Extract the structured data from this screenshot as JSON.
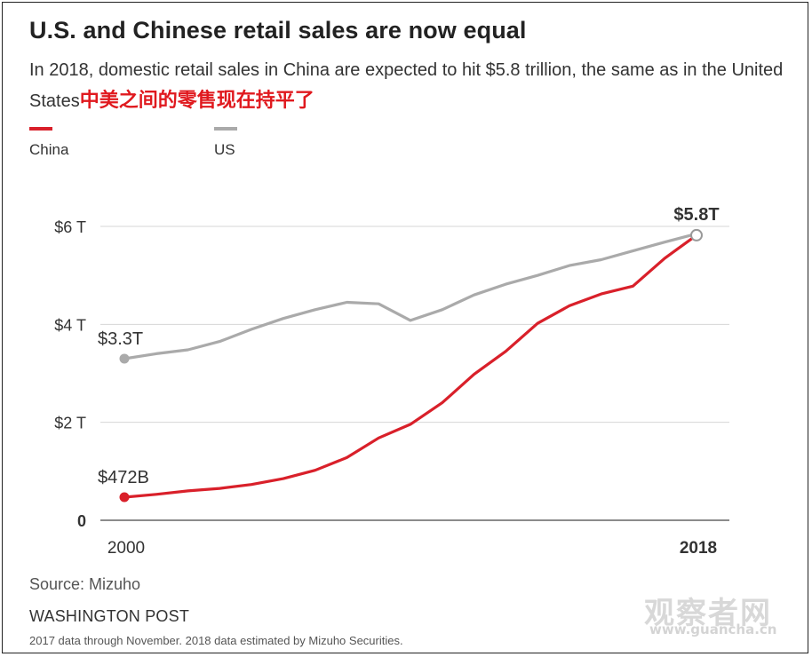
{
  "title": "U.S. and Chinese retail sales are now equal",
  "subtitle": "In 2018, domestic retail sales in China are expected to hit $5.8 trillion, the same as in the United States",
  "subtitle_cn": "中美之间的零售现在持平了",
  "legend": [
    {
      "name": "China",
      "color": "#d9202a"
    },
    {
      "name": "US",
      "color": "#aaaaaa"
    }
  ],
  "source": "Source: Mizuho",
  "brand": "WASHINGTON POST",
  "note": "2017 data through November. 2018 data estimated by Mizuho Securities.",
  "watermark": "观察者网",
  "watermark_url": "www.guancha.cn",
  "chart_data": {
    "type": "line",
    "x": [
      2000,
      2001,
      2002,
      2003,
      2004,
      2005,
      2006,
      2007,
      2008,
      2009,
      2010,
      2011,
      2012,
      2013,
      2014,
      2015,
      2016,
      2017,
      2018
    ],
    "x_tick_labels": [
      {
        "value": 2000,
        "label": "2000",
        "bold": false
      },
      {
        "value": 2018,
        "label": "2018",
        "bold": true
      }
    ],
    "y_ticks": [
      {
        "value": 0,
        "label": "0"
      },
      {
        "value": 2,
        "label": "$2 T"
      },
      {
        "value": 4,
        "label": "$4 T"
      },
      {
        "value": 6,
        "label": "$6 T"
      }
    ],
    "xlim": [
      2000,
      2018
    ],
    "ylim": [
      0,
      6
    ],
    "grid": true,
    "series": [
      {
        "name": "US",
        "color": "#aaaaaa",
        "values": [
          3.3,
          3.4,
          3.48,
          3.65,
          3.9,
          4.12,
          4.3,
          4.45,
          4.42,
          4.08,
          4.3,
          4.6,
          4.82,
          5.0,
          5.2,
          5.32,
          5.5,
          5.68,
          5.85
        ]
      },
      {
        "name": "China",
        "color": "#d9202a",
        "values": [
          0.472,
          0.53,
          0.6,
          0.65,
          0.73,
          0.85,
          1.02,
          1.28,
          1.68,
          1.96,
          2.4,
          2.98,
          3.45,
          4.02,
          4.38,
          4.62,
          4.78,
          5.35,
          5.82
        ]
      }
    ],
    "annotations": [
      {
        "text": "$3.3T",
        "series": "US",
        "x": 2000,
        "bold": false
      },
      {
        "text": "$472B",
        "series": "China",
        "x": 2000,
        "bold": false
      },
      {
        "text": "$5.8T",
        "series": "China",
        "x": 2018,
        "bold": true
      }
    ]
  }
}
